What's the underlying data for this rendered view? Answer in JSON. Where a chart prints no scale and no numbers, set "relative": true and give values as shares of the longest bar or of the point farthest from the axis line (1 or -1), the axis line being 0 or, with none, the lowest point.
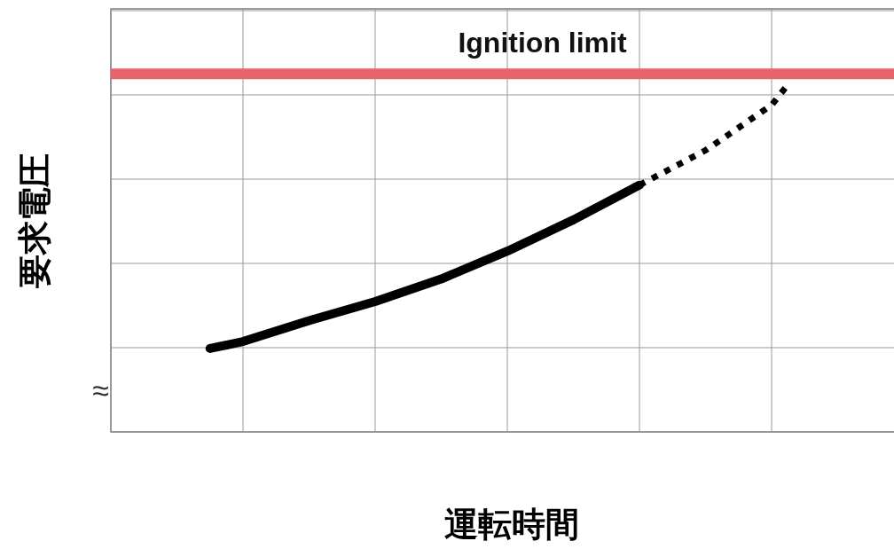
{
  "chart_data": {
    "type": "line",
    "relative": true,
    "xlabel": "運転時間",
    "ylabel": "要求電圧",
    "categories": [
      null,
      null,
      null,
      null,
      null,
      null,
      null,
      null,
      null,
      null,
      null,
      null,
      null,
      null,
      null,
      null,
      null,
      null,
      null,
      null,
      null,
      null,
      null,
      null,
      null,
      null,
      null,
      null,
      null,
      null,
      null,
      null,
      null,
      null,
      null,
      null,
      null,
      null,
      null,
      null,
      null,
      null,
      null,
      null,
      null,
      null,
      null,
      null,
      null
    ],
    "series": [
      {
        "color": "#000000",
        "line_style": "solid",
        "values": [
          null,
          null,
          null,
          null,
          null,
          null,
          0.24,
          null,
          0.26,
          null,
          null,
          null,
          0.32,
          null,
          null,
          null,
          0.375,
          null,
          null,
          null,
          0.44,
          null,
          null,
          null,
          0.52,
          null,
          null,
          null,
          0.61,
          null,
          null,
          null,
          0.71,
          null,
          null,
          null,
          null,
          null,
          null,
          null,
          null,
          null,
          null,
          null,
          null,
          null,
          null,
          null,
          null
        ]
      },
      {
        "color": "#000000",
        "line_style": "dotted",
        "values": [
          null,
          null,
          null,
          null,
          null,
          null,
          null,
          null,
          null,
          null,
          null,
          null,
          null,
          null,
          null,
          null,
          null,
          null,
          null,
          null,
          null,
          null,
          null,
          null,
          null,
          null,
          null,
          null,
          null,
          null,
          null,
          null,
          0.71,
          null,
          null,
          null,
          0.81,
          null,
          null,
          null,
          0.94,
          1.0,
          null,
          null,
          null,
          null,
          null,
          null,
          null
        ]
      }
    ],
    "ref_lines": [
      {
        "axis": "y",
        "value": 1.03,
        "label": "Ignition limit",
        "color": "#e8636a"
      }
    ],
    "annotations": [
      "≈"
    ],
    "grid": true
  }
}
